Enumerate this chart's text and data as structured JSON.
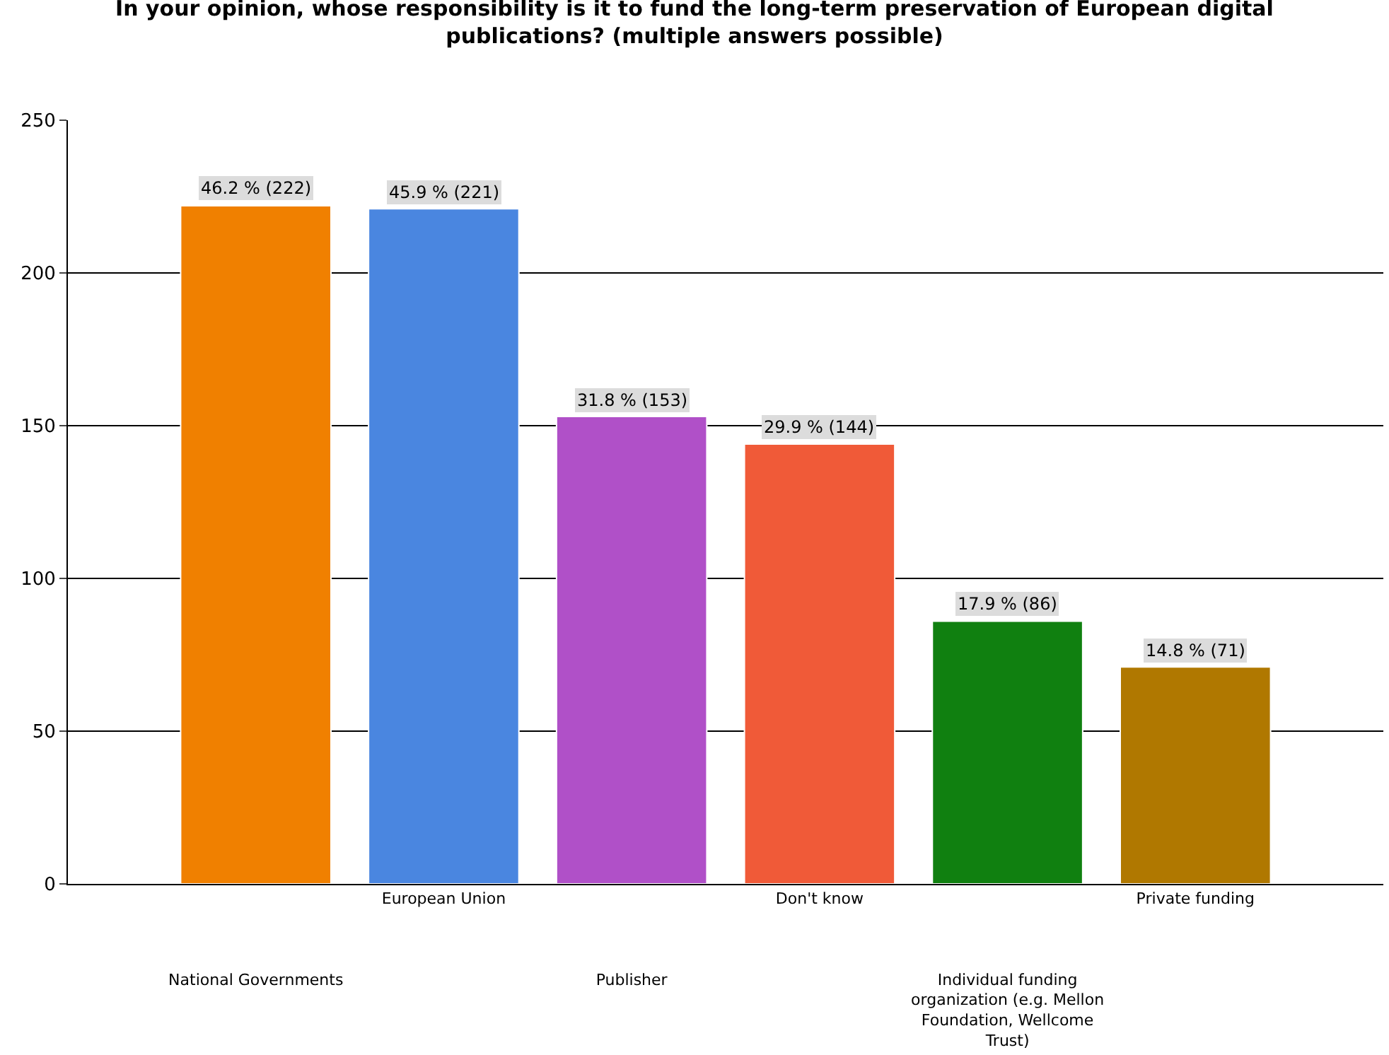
{
  "chart_data": {
    "type": "bar",
    "title": "In your opinion, whose responsibility is it to fund the long-term preservation of European digital publications? (multiple answers possible)",
    "categories": [
      "National Governments",
      "European Union",
      "Publisher",
      "Don't know",
      "Individual funding organization (e.g. Mellon Foundation, Wellcome Trust)",
      "Private funding"
    ],
    "values": [
      222,
      221,
      153,
      144,
      86,
      71
    ],
    "colors": [
      "#f08000",
      "#4a86e0",
      "#b050c8",
      "#f05a38",
      "#108010",
      "#b07800"
    ],
    "value_labels": [
      "46.2 % (222)",
      "45.9 % (221)",
      "31.8 % (153)",
      "29.9 % (144)",
      "17.9 % (86)",
      "14.8 % (71)"
    ],
    "ylim": [
      0,
      250
    ],
    "yticks": [
      0,
      50,
      100,
      150,
      200,
      250
    ],
    "grid": "y",
    "legend": false
  }
}
